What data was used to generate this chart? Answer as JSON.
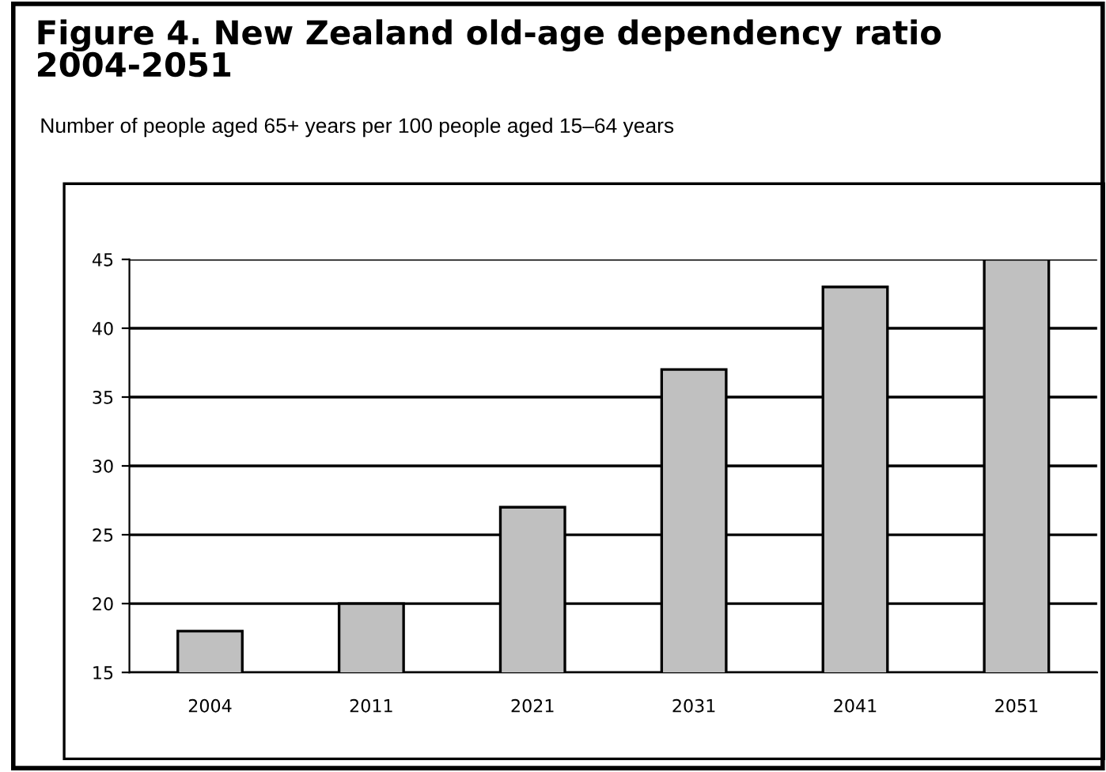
{
  "chart_data": {
    "type": "bar",
    "title": "Figure 4. New Zealand old-age dependency ratio\n2004-2051",
    "subtitle": "Number of people aged 65+ years per 100 people aged 15–64 years",
    "categories": [
      "2004",
      "2011",
      "2021",
      "2031",
      "2041",
      "2051"
    ],
    "values": [
      18,
      20,
      27,
      37,
      43,
      45
    ],
    "color": "#c0c0c0",
    "ylim": [
      15,
      45
    ],
    "yticks": [
      15,
      20,
      25,
      30,
      35,
      40,
      45
    ],
    "grid": "y"
  }
}
